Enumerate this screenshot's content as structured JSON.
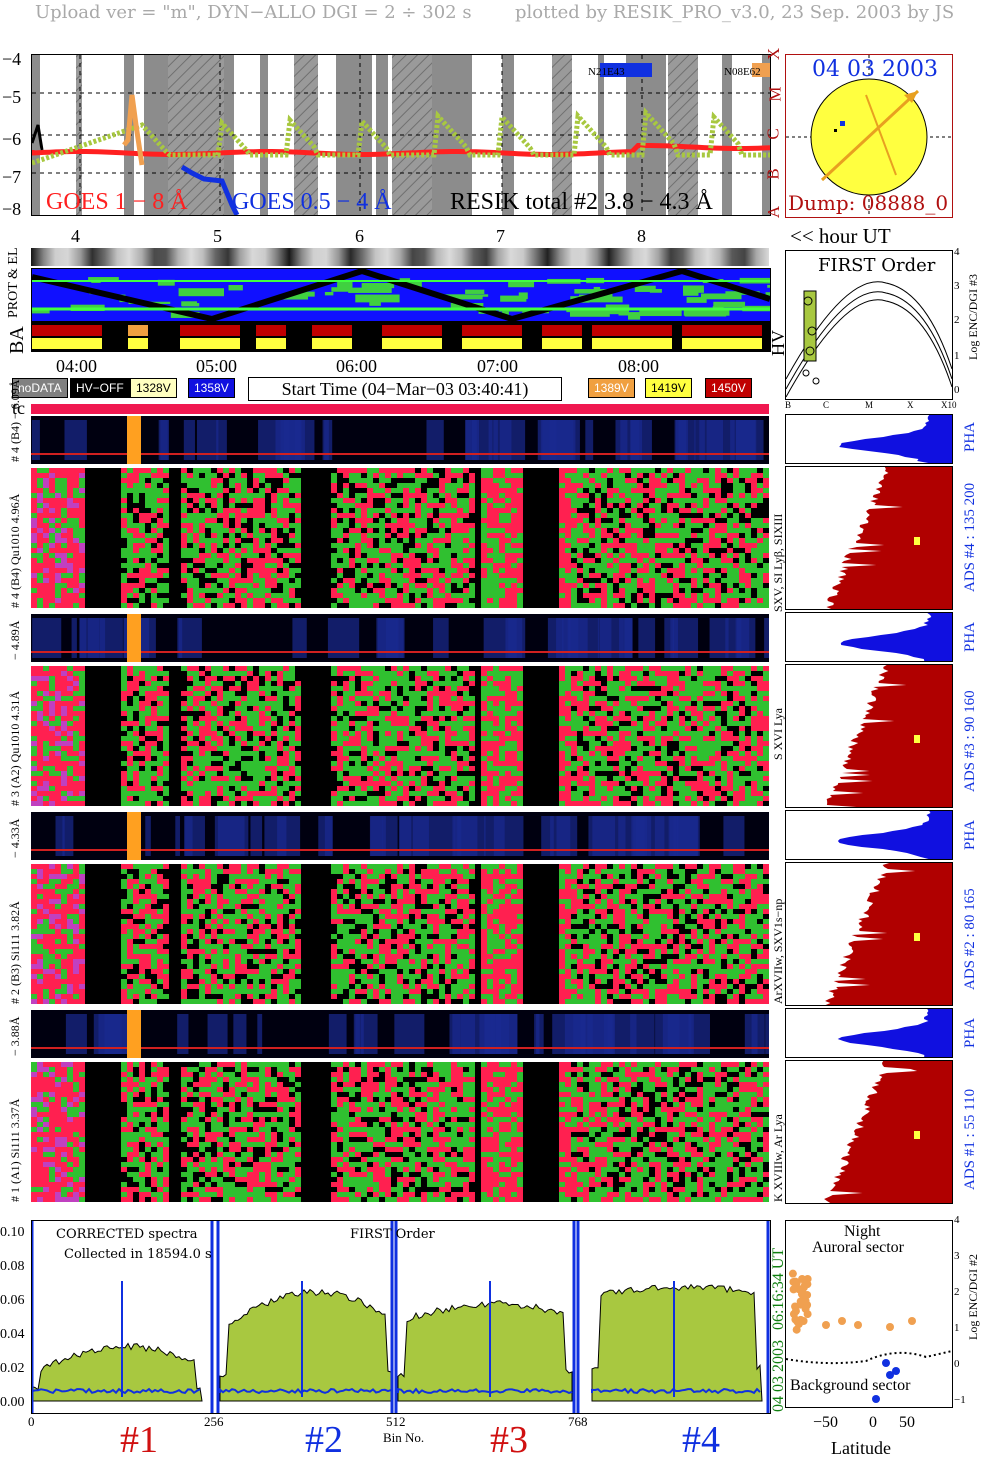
{
  "header": {
    "left": "Upload ver = \"m\", DYN−ALLO DGI =   2 ÷ 302 s",
    "right": "plotted by RESIK_PRO_v3.0, 23 Sep. 2003 by JS"
  },
  "goes": {
    "yticks": [
      "−4",
      "−5",
      "−6",
      "−7",
      "−8"
    ],
    "class_letters": [
      "X",
      "M",
      "C",
      "B",
      "A"
    ],
    "legend_goes18": "GOES 1 − 8 Å",
    "legend_goes054": "GOES 0.5 − 4 Å",
    "legend_resik": "RESIK total #2  3.8 − 4.3 Å",
    "ar_labels": [
      "N21E43",
      "N08E62"
    ],
    "colors": {
      "goes18": "#ff2020",
      "goes054": "#1030e0",
      "resik": "#a8c840",
      "flare": "#f0a050"
    }
  },
  "sun_panel": {
    "date": "04 03 2003",
    "dump": "Dump: 08888_0"
  },
  "hour_axis": {
    "ticks": [
      "4",
      "5",
      "6",
      "7",
      "8"
    ],
    "label": "<< hour UT"
  },
  "orbit": {
    "prot_el_label": "PROT & EL",
    "ba_label": "BA",
    "hv_label": "HV"
  },
  "first_order": {
    "title": "FIRST Order",
    "ylabel": "Log ENC/DGI #3",
    "yticks": [
      "4",
      "3",
      "2",
      "1",
      "0"
    ],
    "xticks": [
      "B",
      "C",
      "M",
      "X",
      "X10"
    ]
  },
  "time_axis": {
    "ticks": [
      "04:00",
      "05:00",
      "06:00",
      "07:00",
      "08:00"
    ]
  },
  "legend": {
    "nodata": "noDATA",
    "hvoff": "HV−OFF",
    "v1328": "1328V",
    "v1358": "1358V",
    "start_time": "Start Time (04−Mar−03 03:40:41)",
    "v1389": "1389V",
    "v1419": "1419V",
    "v1450": "1450V"
  },
  "tc_label": "tc",
  "channels": [
    {
      "pha_label": "# 4 (B4) − 6.09Å",
      "main_label": "# 4 (B4) Qu1010 4.96Å",
      "lines": "SXV, SI Lyβ, SIXIII",
      "ads": "ADS #4 :   135 200"
    },
    {
      "pha_label": "− 4.89Å",
      "main_label": "# 3 (A2) Qu1010 4.31Å",
      "lines": "S XVI Lya",
      "ads": "ADS #3 :    90 160"
    },
    {
      "pha_label": "− 4.33Å",
      "main_label": "# 2 (B3) Si111 3.82Å",
      "lines": "ArXVIIw, SXV1s−np",
      "ads": "ADS #2 :    80 165"
    },
    {
      "pha_label": "− 3.88Å",
      "main_label": "# 1 (A1) Si111 3.37Å",
      "lines": "K XVIIIw, Ar Lya",
      "ads": "ADS #1 :    55 110"
    }
  ],
  "pha_word": "PHA",
  "spectra": {
    "note1": "CORRECTED spectra",
    "note2": "Collected in 18594.0 s",
    "title": "FIRST Order",
    "yticks": [
      "0.10",
      "0.08",
      "0.06",
      "0.04",
      "0.02",
      "0.00"
    ],
    "xticks": [
      "0",
      "256",
      "512",
      "768"
    ],
    "xlabel": "Bin No.",
    "time": "06:16:34 UT",
    "date": "04 03 2003",
    "channel_labels": [
      "#1",
      "#2",
      "#3",
      "#4"
    ]
  },
  "latitude": {
    "night": "Night",
    "auroral": "Auroral sector",
    "background": "Background sector",
    "xlabel": "Latitude",
    "xticks": [
      "−50",
      "0",
      "50"
    ],
    "yticks": [
      "4",
      "3",
      "2",
      "1",
      "0",
      "−1"
    ],
    "ylabel": "Log ENC/DGI #2"
  }
}
